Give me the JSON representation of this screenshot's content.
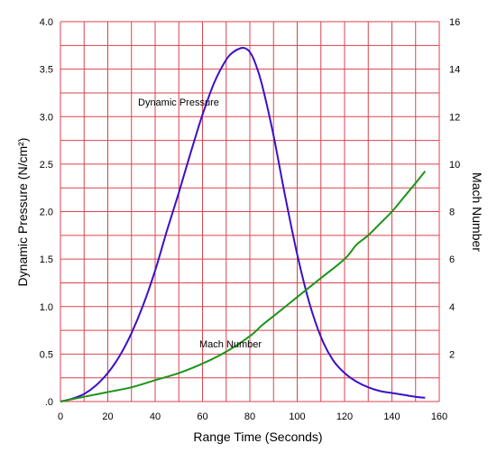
{
  "chart_data": {
    "type": "line",
    "xlabel": "Range Time (Seconds)",
    "ylabel_left": "Dynamic Pressure (N/cm²)",
    "ylabel_right": "Mach Number",
    "xlim": [
      0,
      160
    ],
    "ylim_left": [
      0,
      4.0
    ],
    "ylim_right": [
      0,
      16
    ],
    "x_tick_labels": [
      "0",
      "20",
      "40",
      "60",
      "80",
      "100",
      "120",
      "140",
      "160"
    ],
    "y_left_tick_labels": [
      ".0",
      "0.5",
      "1.0",
      "1.5",
      "2.0",
      "2.5",
      "3.0",
      "3.5",
      "4.0"
    ],
    "y_right_tick_labels": [
      "2",
      "4",
      "6",
      "8",
      "10",
      "12",
      "14",
      "16"
    ],
    "grid": true,
    "grid_color": "#d9434f",
    "series": [
      {
        "name": "Dynamic Pressure",
        "axis": "left",
        "color": "#3a10c8",
        "x": [
          0,
          5,
          10,
          15,
          20,
          25,
          30,
          35,
          40,
          45,
          50,
          55,
          60,
          65,
          70,
          73,
          76,
          78,
          80,
          82,
          85,
          90,
          95,
          100,
          105,
          110,
          115,
          120,
          125,
          130,
          135,
          140,
          145,
          150,
          154
        ],
        "y": [
          0.0,
          0.03,
          0.08,
          0.17,
          0.3,
          0.48,
          0.72,
          1.02,
          1.38,
          1.8,
          2.2,
          2.62,
          3.02,
          3.36,
          3.6,
          3.68,
          3.72,
          3.72,
          3.68,
          3.58,
          3.35,
          2.8,
          2.15,
          1.55,
          1.05,
          0.68,
          0.44,
          0.3,
          0.21,
          0.15,
          0.11,
          0.09,
          0.07,
          0.05,
          0.04
        ]
      },
      {
        "name": "Mach Number",
        "axis": "right",
        "color": "#1c9418",
        "x": [
          0,
          10,
          20,
          30,
          40,
          50,
          60,
          70,
          80,
          85,
          90,
          100,
          110,
          120,
          125,
          130,
          135,
          140,
          145,
          150,
          154
        ],
        "y": [
          0.0,
          0.2,
          0.4,
          0.6,
          0.9,
          1.2,
          1.6,
          2.1,
          2.75,
          3.2,
          3.6,
          4.4,
          5.2,
          6.0,
          6.6,
          7.0,
          7.5,
          8.0,
          8.6,
          9.2,
          9.7
        ]
      }
    ],
    "annotations": [
      {
        "text": "Dynamic Pressure",
        "series": 0
      },
      {
        "text": "Mach Number",
        "series": 1
      }
    ]
  }
}
